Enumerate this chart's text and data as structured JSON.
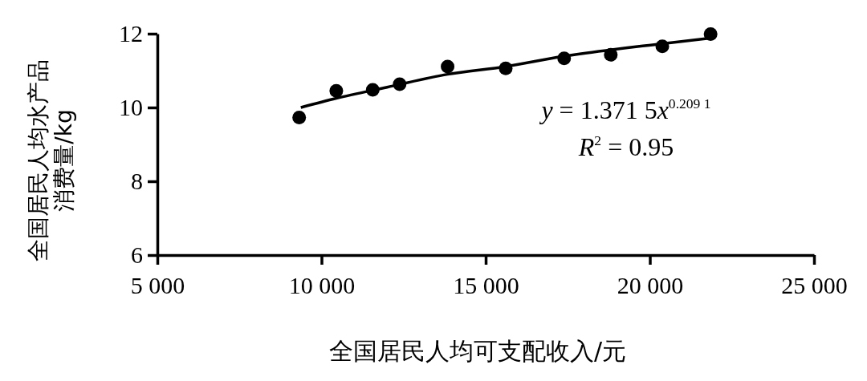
{
  "chart_data": {
    "type": "scatter",
    "xlabel": "全国居民人均可支配收入/元",
    "ylabel": "全国居民人均水产品消费量/kg",
    "xlim": [
      5000,
      25000
    ],
    "xticks": [
      {
        "value": 5000,
        "label": "5 000"
      },
      {
        "value": 10000,
        "label": "10 000"
      },
      {
        "value": 15000,
        "label": "15 000"
      },
      {
        "value": 20000,
        "label": "20 000"
      },
      {
        "value": 25000,
        "label": "25 000"
      }
    ],
    "ylim": [
      6,
      12
    ],
    "yticks": [
      6,
      8,
      10,
      12
    ],
    "series": [
      {
        "marker": "circle",
        "color": "#000000",
        "x": [
          9320,
          10450,
          11560,
          12380,
          13840,
          15610,
          17390,
          18810,
          20380,
          21850
        ],
        "values": [
          9.73,
          10.45,
          10.48,
          10.63,
          11.11,
          11.06,
          11.33,
          11.43,
          11.66,
          11.99
        ]
      },
      {
        "type": "line",
        "marker": "none",
        "color": "#000000",
        "line_style": "solid",
        "x": [
          9370,
          10450,
          12000,
          13840,
          15610,
          17390,
          20380,
          21850
        ],
        "values": [
          10.0,
          10.25,
          10.55,
          10.9,
          11.11,
          11.39,
          11.73,
          11.88
        ]
      }
    ],
    "annotations": [
      "y = 1.371 5x$^{0.209 1}$",
      "R$^{2}$ = 0.95"
    ]
  }
}
